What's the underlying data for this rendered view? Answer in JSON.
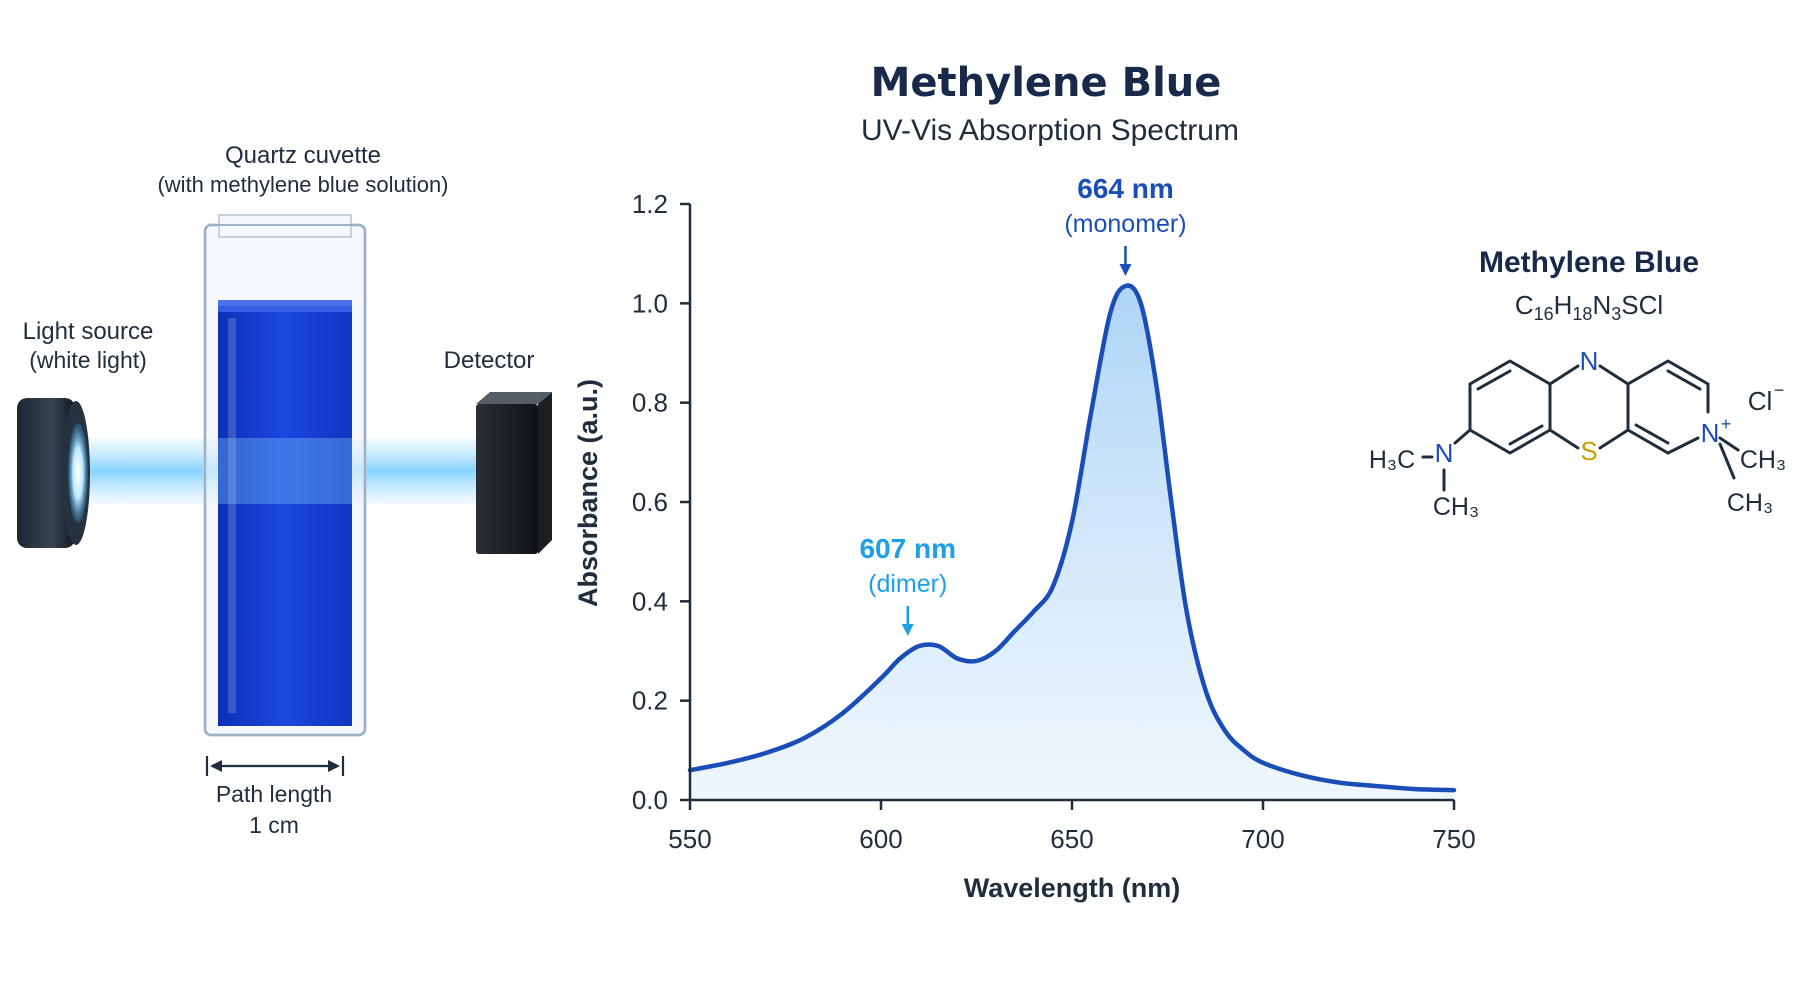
{
  "colors": {
    "dark_blue": "#1a4db8",
    "light_blue": "#1ea0e6",
    "navy": "#18294a",
    "sulfur": "#c9a000",
    "solution": "#1740d0"
  },
  "apparatus": {
    "cuvette_label": "Quartz cuvette",
    "cuvette_sublabel": "(with methylene blue solution)",
    "light_source_label": "Light source",
    "light_source_sublabel": "(white light)",
    "detector_label": "Detector",
    "path_length_label": "Path length",
    "path_length_value": "1 cm"
  },
  "molecule": {
    "name": "Methylene Blue",
    "formula_parts": [
      {
        "t": "C",
        "sub": false
      },
      {
        "t": "16",
        "sub": true
      },
      {
        "t": "H",
        "sub": false
      },
      {
        "t": "18",
        "sub": true
      },
      {
        "t": "N",
        "sub": false
      },
      {
        "t": "3",
        "sub": true
      },
      {
        "t": "SCl",
        "sub": false
      }
    ],
    "atom_n_top": "N",
    "atom_s": "S",
    "atom_n_left": "N",
    "atom_n_plus": "N",
    "charge_plus": "+",
    "counter_ion": "Cl",
    "counter_charge": "−",
    "group_h3c": "H₃C",
    "group_ch3_bottom_left": "CH₃",
    "group_ch3_right_top": "CH₃",
    "group_ch3_right_bottom": "CH₃"
  },
  "chart_data": {
    "type": "area",
    "title": "Methylene Blue",
    "subtitle": "UV-Vis Absorption Spectrum",
    "xlabel": "Wavelength (nm)",
    "ylabel": "Absorbance (a.u.)",
    "xlim": [
      550,
      750
    ],
    "ylim": [
      0,
      1.2
    ],
    "xticks": [
      550,
      600,
      650,
      700,
      750
    ],
    "yticks": [
      "0.0",
      "0.2",
      "0.4",
      "0.6",
      "0.8",
      "1.0",
      "1.2"
    ],
    "grid": false,
    "series": [
      {
        "x": [
          550,
          560,
          570,
          580,
          590,
          600,
          605,
          610,
          615,
          620,
          625,
          630,
          635,
          640,
          645,
          650,
          655,
          660,
          664,
          668,
          672,
          676,
          680,
          685,
          690,
          695,
          700,
          710,
          720,
          730,
          740,
          750
        ],
        "y": [
          0.06,
          0.075,
          0.095,
          0.125,
          0.175,
          0.245,
          0.285,
          0.31,
          0.31,
          0.285,
          0.28,
          0.3,
          0.34,
          0.38,
          0.43,
          0.56,
          0.78,
          0.98,
          1.035,
          1.0,
          0.84,
          0.6,
          0.38,
          0.22,
          0.14,
          0.1,
          0.075,
          0.05,
          0.035,
          0.028,
          0.022,
          0.02
        ]
      }
    ],
    "annotations": [
      {
        "x": 607,
        "y": 0.31,
        "label": "607 nm",
        "sublabel": "(dimer)",
        "color": "#1ea0e6"
      },
      {
        "x": 664,
        "y": 1.035,
        "label": "664 nm",
        "sublabel": "(monomer)",
        "color": "#1a4db8"
      }
    ]
  }
}
